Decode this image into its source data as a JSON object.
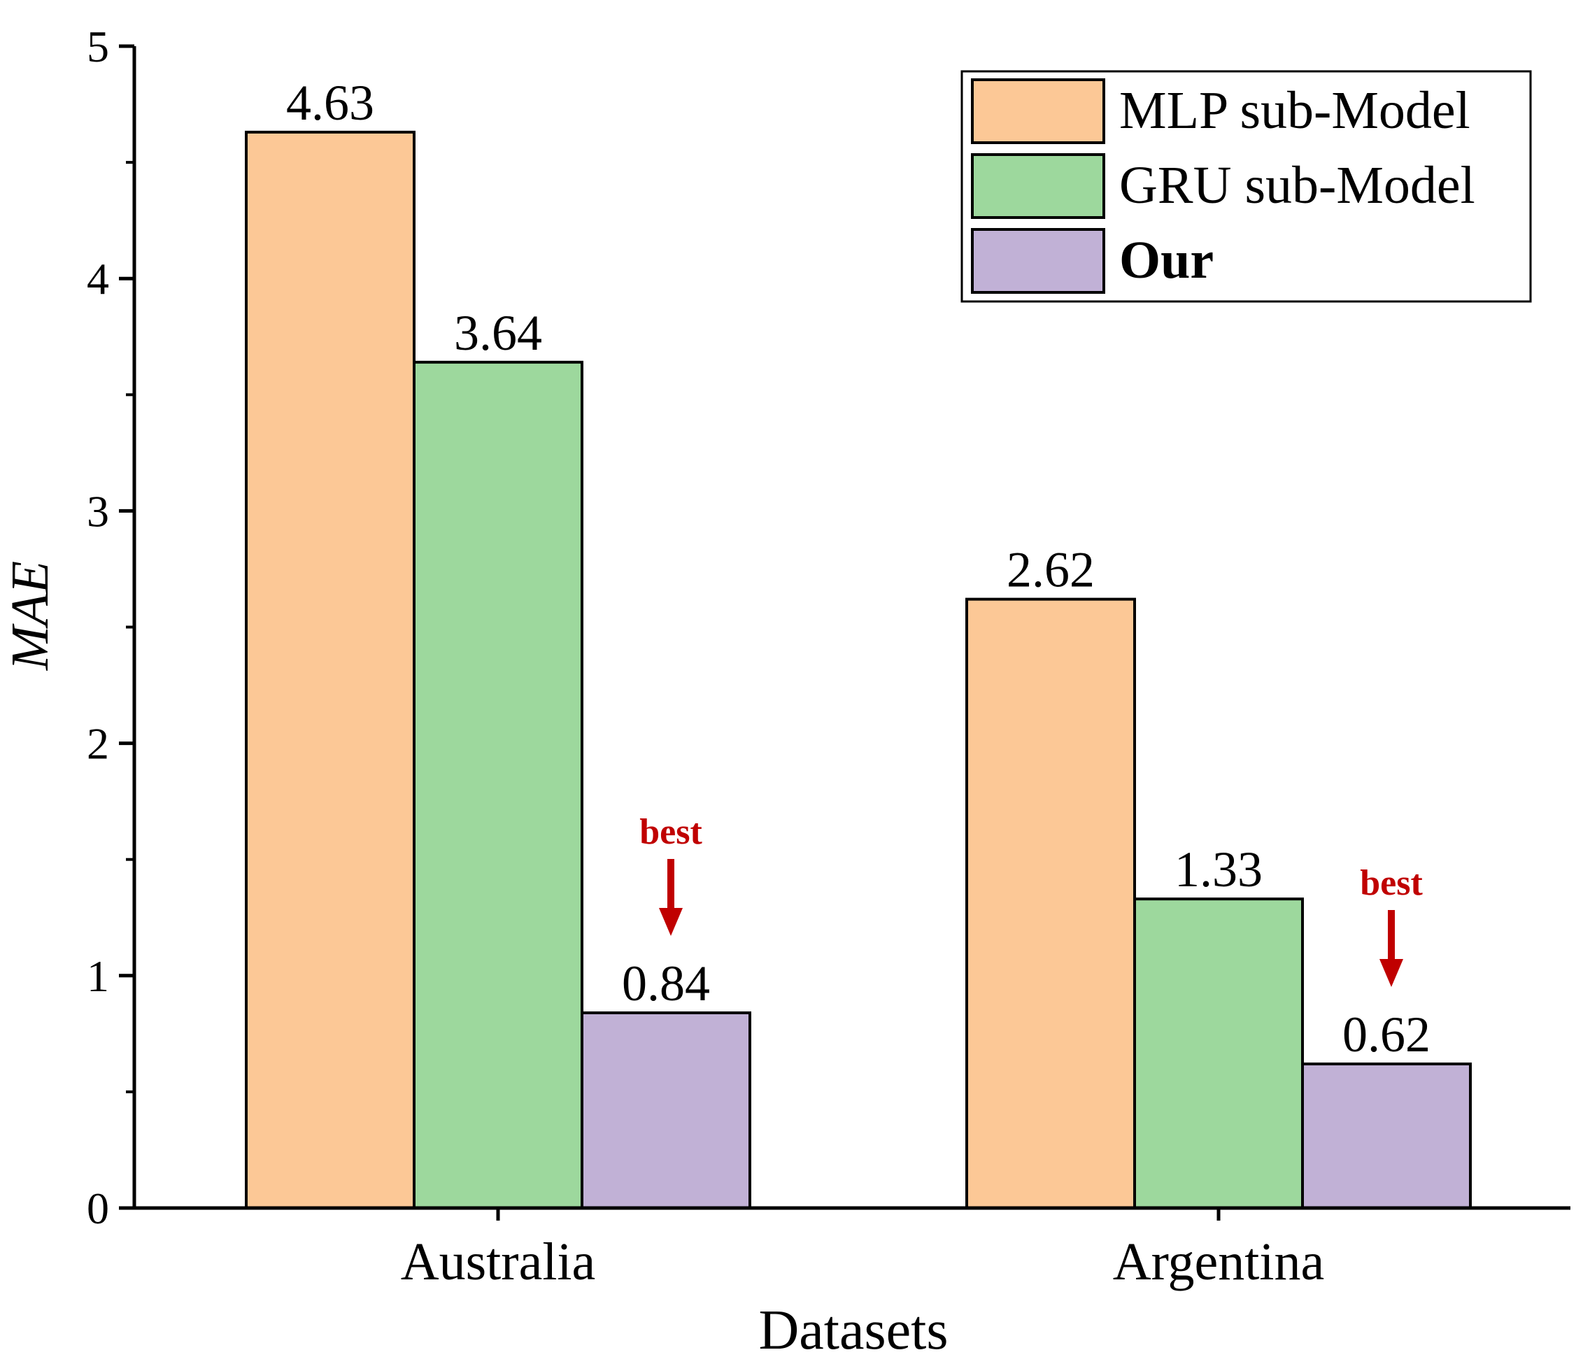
{
  "chart_data": {
    "type": "bar",
    "xlabel": "Datasets",
    "ylabel": "MAE",
    "ylim": [
      0,
      5
    ],
    "yticks": [
      "0",
      "1",
      "2",
      "3",
      "4",
      "5"
    ],
    "grid": false,
    "legend_position": "top-right",
    "categories": [
      "Australia",
      "Argentina"
    ],
    "series": [
      {
        "name": "MLP sub-Model",
        "color": "#FCC896",
        "values": [
          4.63,
          2.62
        ],
        "labels": [
          "4.63",
          "2.62"
        ]
      },
      {
        "name": "GRU sub-Model",
        "color": "#9DD89D",
        "values": [
          3.64,
          1.33
        ],
        "labels": [
          "3.64",
          "1.33"
        ]
      },
      {
        "name": "Our",
        "color": "#C1B1D6",
        "values": [
          0.84,
          0.62
        ],
        "labels": [
          "0.84",
          "0.62"
        ]
      }
    ],
    "annotations": [
      {
        "text": "best",
        "category": "Australia",
        "series": "Our",
        "color": "#C00000"
      },
      {
        "text": "best",
        "category": "Argentina",
        "series": "Our",
        "color": "#C00000"
      }
    ]
  }
}
